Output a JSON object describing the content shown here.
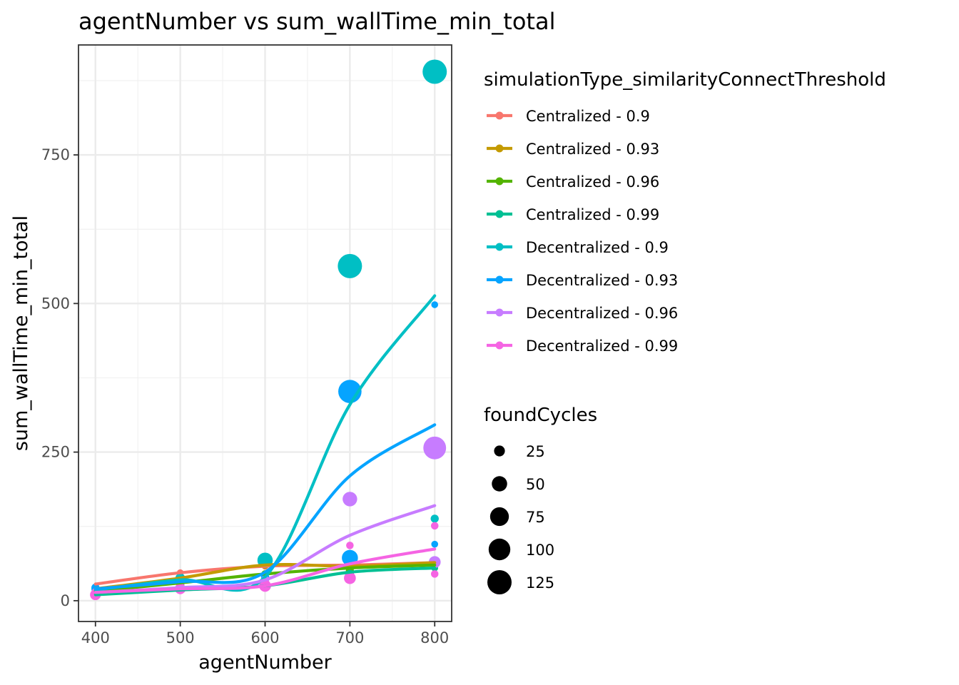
{
  "chart_data": {
    "type": "scatter",
    "title": "agentNumber  vs  sum_wallTime_min_total",
    "xlabel": "agentNumber",
    "ylabel": "sum_wallTime_min_total",
    "xlim": [
      380,
      820
    ],
    "ylim": [
      -35,
      935
    ],
    "x_ticks": [
      400,
      500,
      600,
      700,
      800
    ],
    "y_ticks": [
      0,
      250,
      500,
      750
    ],
    "grid": true,
    "legend_placement": "right",
    "color_legend_title": "simulationType_similarityConnectThreshold",
    "size_legend_title": "foundCycles",
    "size_legend": [
      {
        "label": "25",
        "value": 25
      },
      {
        "label": "50",
        "value": 50
      },
      {
        "label": "75",
        "value": 75
      },
      {
        "label": "100",
        "value": 100
      },
      {
        "label": "125",
        "value": 125
      }
    ],
    "series": [
      {
        "name": "Centralized - 0.9",
        "color": "#F8766D",
        "points": [
          {
            "x": 400,
            "y": 22,
            "size": 8
          },
          {
            "x": 500,
            "y": 47,
            "size": 10
          },
          {
            "x": 600,
            "y": 58,
            "size": 10
          },
          {
            "x": 700,
            "y": 60,
            "size": 12
          },
          {
            "x": 800,
            "y": 62,
            "size": 10
          }
        ],
        "smooth": [
          [
            400,
            28
          ],
          [
            500,
            47
          ],
          [
            600,
            58
          ],
          [
            700,
            60
          ],
          [
            800,
            64
          ]
        ]
      },
      {
        "name": "Centralized - 0.93",
        "color": "#C49A00",
        "points": [
          {
            "x": 400,
            "y": 15,
            "size": 8
          },
          {
            "x": 500,
            "y": 35,
            "size": 14
          },
          {
            "x": 600,
            "y": 60,
            "size": 12
          },
          {
            "x": 700,
            "y": 55,
            "size": 14
          },
          {
            "x": 800,
            "y": 65,
            "size": 16
          }
        ],
        "smooth": [
          [
            400,
            20
          ],
          [
            500,
            38
          ],
          [
            600,
            60
          ],
          [
            700,
            58
          ],
          [
            800,
            64
          ]
        ]
      },
      {
        "name": "Centralized - 0.96",
        "color": "#53B400",
        "points": [
          {
            "x": 400,
            "y": 14,
            "size": 8
          },
          {
            "x": 500,
            "y": 28,
            "size": 14
          },
          {
            "x": 600,
            "y": 45,
            "size": 12
          },
          {
            "x": 700,
            "y": 50,
            "size": 14
          },
          {
            "x": 800,
            "y": 60,
            "size": 12
          }
        ],
        "smooth": [
          [
            400,
            16
          ],
          [
            500,
            30
          ],
          [
            600,
            45
          ],
          [
            700,
            55
          ],
          [
            800,
            60
          ]
        ]
      },
      {
        "name": "Centralized - 0.99",
        "color": "#00C094",
        "points": [
          {
            "x": 400,
            "y": 10,
            "size": 8
          },
          {
            "x": 500,
            "y": 20,
            "size": 10
          },
          {
            "x": 600,
            "y": 25,
            "size": 12
          },
          {
            "x": 700,
            "y": 45,
            "size": 14
          },
          {
            "x": 800,
            "y": 55,
            "size": 10
          }
        ],
        "smooth": [
          [
            400,
            10
          ],
          [
            500,
            18
          ],
          [
            600,
            25
          ],
          [
            700,
            48
          ],
          [
            800,
            55
          ]
        ]
      },
      {
        "name": "Decentralized - 0.9",
        "color": "#00B6EB",
        "display_color": "#00BFC4",
        "points": [
          {
            "x": 400,
            "y": 20,
            "size": 14
          },
          {
            "x": 500,
            "y": 38,
            "size": 20
          },
          {
            "x": 600,
            "y": 68,
            "size": 50
          },
          {
            "x": 700,
            "y": 563,
            "size": 125
          },
          {
            "x": 800,
            "y": 890,
            "size": 125
          },
          {
            "x": 800,
            "y": 138,
            "size": 14
          }
        ],
        "smooth": [
          [
            400,
            18
          ],
          [
            500,
            35
          ],
          [
            600,
            40
          ],
          [
            700,
            330
          ],
          [
            800,
            513
          ]
        ]
      },
      {
        "name": "Decentralized - 0.93",
        "color": "#06A4FF",
        "points": [
          {
            "x": 400,
            "y": 22,
            "size": 14
          },
          {
            "x": 500,
            "y": 30,
            "size": 14
          },
          {
            "x": 600,
            "y": 40,
            "size": 14
          },
          {
            "x": 700,
            "y": 352,
            "size": 115
          },
          {
            "x": 700,
            "y": 72,
            "size": 55
          },
          {
            "x": 800,
            "y": 498,
            "size": 10
          },
          {
            "x": 800,
            "y": 95,
            "size": 10
          }
        ],
        "smooth": [
          [
            400,
            20
          ],
          [
            500,
            32
          ],
          [
            600,
            48
          ],
          [
            700,
            210
          ],
          [
            800,
            296
          ]
        ]
      },
      {
        "name": "Decentralized - 0.96",
        "color": "#C77CFF",
        "points": [
          {
            "x": 400,
            "y": 15,
            "size": 12
          },
          {
            "x": 500,
            "y": 25,
            "size": 12
          },
          {
            "x": 600,
            "y": 35,
            "size": 14
          },
          {
            "x": 700,
            "y": 171,
            "size": 45
          },
          {
            "x": 800,
            "y": 257,
            "size": 110
          },
          {
            "x": 800,
            "y": 65,
            "size": 30
          }
        ],
        "smooth": [
          [
            400,
            14
          ],
          [
            500,
            22
          ],
          [
            600,
            35
          ],
          [
            700,
            110
          ],
          [
            800,
            160
          ]
        ]
      },
      {
        "name": "Decentralized - 0.99",
        "color": "#FB61D7",
        "display_color": "#F564E3",
        "points": [
          {
            "x": 400,
            "y": 10,
            "size": 25
          },
          {
            "x": 500,
            "y": 20,
            "size": 25
          },
          {
            "x": 600,
            "y": 25,
            "size": 30
          },
          {
            "x": 700,
            "y": 38,
            "size": 30
          },
          {
            "x": 700,
            "y": 93,
            "size": 12
          },
          {
            "x": 800,
            "y": 45,
            "size": 12
          },
          {
            "x": 800,
            "y": 126,
            "size": 12
          }
        ],
        "smooth": [
          [
            400,
            14
          ],
          [
            500,
            20
          ],
          [
            600,
            25
          ],
          [
            700,
            62
          ],
          [
            800,
            87
          ]
        ]
      }
    ]
  }
}
